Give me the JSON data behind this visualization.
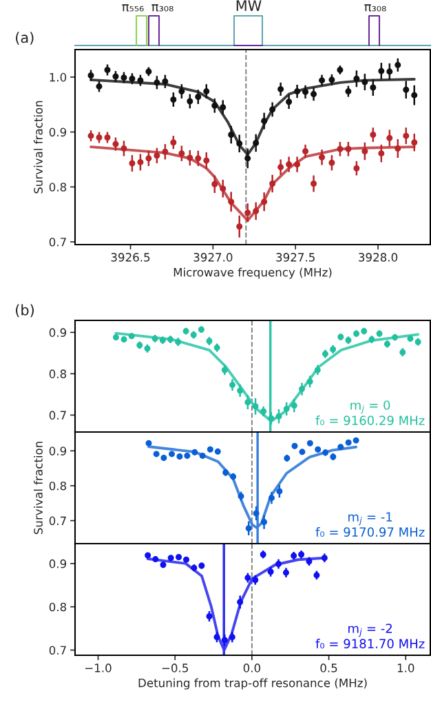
{
  "chart_data": [
    {
      "type": "other",
      "annotations": [
        "π₅₅₆",
        "π₃₀₈",
        "MW",
        "π₃₀₈"
      ]
    },
    {
      "type": "scatter",
      "xlabel": "Microwave frequency (MHz)",
      "ylabel": "Survival fraction",
      "annotations": [
        "(a)"
      ],
      "xlim": [
        3926.164,
        3928.317
      ],
      "xticks": [
        3926.5,
        {
          "value": 3927,
          "label": "3927.0"
        },
        3927.5,
        {
          "value": 3928,
          "label": "3928.0"
        }
      ],
      "ylim": [
        0.695,
        1.05
      ],
      "yticks": [
        0.7,
        0.8,
        0.9,
        {
          "value": 1,
          "label": "1.0"
        }
      ],
      "ref_lines": [
        {
          "axis": "x",
          "value": 3927.2,
          "color": "#808080",
          "line_style": "dashed"
        }
      ],
      "series": [
        {
          "type": "scatter",
          "marker": "circle",
          "color": "#111111",
          "x": [
            3926.26,
            3926.31,
            3926.36,
            3926.41,
            3926.46,
            3926.51,
            3926.56,
            3926.61,
            3926.66,
            3926.71,
            3926.76,
            3926.81,
            3926.86,
            3926.91,
            3926.96,
            3927.01,
            3927.06,
            3927.11,
            3927.16,
            3927.21,
            3927.26,
            3927.31,
            3927.36,
            3927.41,
            3927.46,
            3927.51,
            3927.56,
            3927.61,
            3927.66,
            3927.72,
            3927.77,
            3927.82,
            3927.87,
            3927.92,
            3927.97,
            3928.02,
            3928.07,
            3928.12,
            3928.17,
            3928.22
          ],
          "values": [
            1.003,
            0.983,
            1.013,
            1.001,
            0.999,
            0.997,
            0.994,
            1.01,
            0.99,
            0.992,
            0.959,
            0.974,
            0.956,
            0.964,
            0.974,
            0.948,
            0.945,
            0.895,
            0.879,
            0.852,
            0.88,
            0.92,
            0.941,
            0.978,
            0.955,
            0.974,
            0.973,
            0.969,
            0.994,
            0.995,
            1.013,
            0.974,
            0.997,
            0.991,
            0.981,
            1.011,
            1.01,
            1.022,
            0.977,
            0.967
          ],
          "errors": [
            0.01,
            0.01,
            0.01,
            0.01,
            0.01,
            0.01,
            0.01,
            0.008,
            0.012,
            0.012,
            0.013,
            0.013,
            0.013,
            0.013,
            0.013,
            0.013,
            0.013,
            0.016,
            0.016,
            0.018,
            0.016,
            0.015,
            0.013,
            0.012,
            0.013,
            0.012,
            0.012,
            0.012,
            0.01,
            0.01,
            0.008,
            0.01,
            0.015,
            0.015,
            0.015,
            0.015,
            0.015,
            0.012,
            0.016,
            0.018
          ]
        },
        {
          "type": "scatter",
          "marker": "circle",
          "color": "#b8262a",
          "x": [
            3926.26,
            3926.31,
            3926.36,
            3926.41,
            3926.46,
            3926.51,
            3926.56,
            3926.61,
            3926.66,
            3926.71,
            3926.76,
            3926.81,
            3926.86,
            3926.91,
            3926.96,
            3927.01,
            3927.06,
            3927.11,
            3927.16,
            3927.21,
            3927.26,
            3927.31,
            3927.36,
            3927.41,
            3927.46,
            3927.51,
            3927.56,
            3927.61,
            3927.66,
            3927.72,
            3927.77,
            3927.82,
            3927.87,
            3927.92,
            3927.97,
            3928.02,
            3928.07,
            3928.12,
            3928.17,
            3928.22
          ],
          "values": [
            0.893,
            0.89,
            0.89,
            0.878,
            0.87,
            0.843,
            0.845,
            0.852,
            0.857,
            0.864,
            0.881,
            0.861,
            0.853,
            0.852,
            0.848,
            0.805,
            0.797,
            0.773,
            0.728,
            0.753,
            0.756,
            0.773,
            0.806,
            0.836,
            0.841,
            0.841,
            0.865,
            0.806,
            0.854,
            0.844,
            0.869,
            0.869,
            0.834,
            0.865,
            0.895,
            0.861,
            0.889,
            0.87,
            0.893,
            0.881
          ],
          "errors": [
            0.01,
            0.01,
            0.01,
            0.012,
            0.014,
            0.015,
            0.015,
            0.014,
            0.014,
            0.014,
            0.012,
            0.014,
            0.014,
            0.014,
            0.015,
            0.016,
            0.016,
            0.018,
            0.02,
            0.017,
            0.016,
            0.017,
            0.016,
            0.014,
            0.014,
            0.014,
            0.012,
            0.015,
            0.014,
            0.014,
            0.013,
            0.013,
            0.013,
            0.016,
            0.013,
            0.016,
            0.015,
            0.017,
            0.015,
            0.016
          ]
        },
        {
          "type": "line",
          "color": "#333333",
          "x": [
            3926.26,
            3926.71,
            3926.91,
            3927.01,
            3927.09,
            3927.16,
            3927.21,
            3927.26,
            3927.31,
            3927.36,
            3927.46,
            3927.56,
            3927.77,
            3927.92,
            3928.22
          ],
          "values": [
            0.995,
            0.987,
            0.973,
            0.955,
            0.918,
            0.876,
            0.859,
            0.88,
            0.914,
            0.941,
            0.969,
            0.979,
            0.99,
            0.994,
            0.996
          ]
        },
        {
          "type": "line",
          "color": "#c44a4c",
          "x": [
            3926.26,
            3926.71,
            3926.86,
            3926.96,
            3927.01,
            3927.11,
            3927.21,
            3927.31,
            3927.36,
            3927.46,
            3927.56,
            3927.77,
            3927.92,
            3928.22
          ],
          "values": [
            0.873,
            0.862,
            0.852,
            0.834,
            0.818,
            0.771,
            0.739,
            0.775,
            0.805,
            0.834,
            0.855,
            0.869,
            0.871,
            0.873
          ]
        }
      ]
    },
    {
      "type": "scatter",
      "annotations": [
        "(b)",
        "m$_{j}$ = 0\nf₀ = 9160.29 MHz"
      ],
      "tick_labels": "y",
      "xlim": [
        -1.15,
        1.16
      ],
      "ylim": [
        0.659,
        0.929
      ],
      "yticks": [
        0.7,
        0.8,
        0.9
      ],
      "ref_lines": [
        {
          "axis": "x",
          "value": 0.0,
          "color": "#808080",
          "line_style": "dashed"
        },
        {
          "axis": "x",
          "value": 0.12,
          "color": "#2fc6a8",
          "line_style": "solid"
        }
      ],
      "series": [
        {
          "type": "scatter",
          "marker": "circle",
          "color": "#22c0a0",
          "x": [
            -0.884,
            -0.832,
            -0.782,
            -0.73,
            -0.68,
            -0.63,
            -0.58,
            -0.53,
            -0.48,
            -0.429,
            -0.379,
            -0.329,
            -0.277,
            -0.227,
            -0.177,
            -0.127,
            -0.077,
            -0.027,
            0.023,
            0.075,
            0.125,
            0.175,
            0.225,
            0.275,
            0.325,
            0.377,
            0.427,
            0.477,
            0.527,
            0.577,
            0.627,
            0.679,
            0.729,
            0.779,
            0.829,
            0.88,
            0.93,
            0.98,
            1.03,
            1.08
          ],
          "values": [
            0.888,
            0.883,
            0.891,
            0.869,
            0.861,
            0.885,
            0.881,
            0.883,
            0.877,
            0.903,
            0.894,
            0.907,
            0.879,
            0.863,
            0.809,
            0.773,
            0.759,
            0.731,
            0.721,
            0.709,
            0.692,
            0.697,
            0.715,
            0.723,
            0.763,
            0.781,
            0.809,
            0.848,
            0.859,
            0.889,
            0.881,
            0.897,
            0.903,
            0.883,
            0.897,
            0.872,
            0.888,
            0.852,
            0.885,
            0.877
          ],
          "errors": [
            0.007,
            0.007,
            0.007,
            0.009,
            0.01,
            0.009,
            0.009,
            0.009,
            0.01,
            0.008,
            0.009,
            0.008,
            0.01,
            0.01,
            0.012,
            0.014,
            0.015,
            0.017,
            0.02,
            0.012,
            0.015,
            0.017,
            0.016,
            0.016,
            0.015,
            0.014,
            0.012,
            0.01,
            0.01,
            0.008,
            0.009,
            0.008,
            0.008,
            0.009,
            0.008,
            0.009,
            0.008,
            0.01,
            0.008,
            0.009
          ]
        },
        {
          "type": "line",
          "color": "#3fcab0",
          "x": [
            -0.884,
            -0.52,
            -0.277,
            -0.17,
            -0.064,
            0.025,
            0.125,
            0.221,
            0.329,
            0.436,
            0.579,
            0.775,
            1.08
          ],
          "values": [
            0.898,
            0.883,
            0.857,
            0.817,
            0.763,
            0.717,
            0.685,
            0.71,
            0.763,
            0.817,
            0.857,
            0.88,
            0.895
          ]
        }
      ]
    },
    {
      "type": "scatter",
      "ylabel": "Survival fraction",
      "annotations": [
        "m$_{j}$ = -1\nf₀ = 9170.97 MHz"
      ],
      "tick_labels": "y",
      "xlim": [
        -1.15,
        1.16
      ],
      "ylim": [
        0.634,
        0.954
      ],
      "yticks": [
        0.7,
        0.8,
        0.9
      ],
      "ref_lines": [
        {
          "axis": "x",
          "value": 0.0,
          "color": "#808080",
          "line_style": "dashed"
        },
        {
          "axis": "x",
          "value": 0.037,
          "color": "#3a80dc",
          "line_style": "solid"
        }
      ],
      "series": [
        {
          "type": "scatter",
          "marker": "circle",
          "color": "#0a5fd6",
          "x": [
            -0.671,
            -0.621,
            -0.573,
            -0.521,
            -0.47,
            -0.421,
            -0.372,
            -0.321,
            -0.271,
            -0.222,
            -0.171,
            -0.122,
            -0.071,
            -0.021,
            0.028,
            0.079,
            0.128,
            0.179,
            0.228,
            0.278,
            0.327,
            0.378,
            0.429,
            0.478,
            0.528,
            0.577,
            0.628,
            0.677
          ],
          "values": [
            0.922,
            0.891,
            0.88,
            0.891,
            0.884,
            0.886,
            0.896,
            0.886,
            0.904,
            0.898,
            0.838,
            0.826,
            0.77,
            0.678,
            0.721,
            0.696,
            0.765,
            0.784,
            0.879,
            0.914,
            0.897,
            0.922,
            0.904,
            0.895,
            0.883,
            0.911,
            0.924,
            0.93
          ],
          "errors": [
            0.007,
            0.008,
            0.008,
            0.008,
            0.008,
            0.008,
            0.008,
            0.008,
            0.007,
            0.008,
            0.01,
            0.01,
            0.013,
            0.02,
            0.02,
            0.02,
            0.017,
            0.018,
            0.01,
            0.008,
            0.008,
            0.008,
            0.008,
            0.009,
            0.01,
            0.008,
            0.007,
            0.007
          ]
        },
        {
          "type": "line",
          "color": "#3a80dc",
          "x": [
            -0.671,
            -0.372,
            -0.22,
            -0.122,
            -0.056,
            0.003,
            0.03,
            0.062,
            0.122,
            0.226,
            0.375,
            0.524,
            0.677
          ],
          "values": [
            0.912,
            0.897,
            0.869,
            0.82,
            0.744,
            0.688,
            0.68,
            0.692,
            0.77,
            0.836,
            0.882,
            0.902,
            0.911
          ]
        }
      ]
    },
    {
      "type": "scatter",
      "xlabel": "Detuning from trap-off resonance (MHz)",
      "annotations": [
        "m$_{j}$ = -2\nf₀ = 9181.70 MHz"
      ],
      "xlim": [
        -1.15,
        1.16
      ],
      "xticks": [
        {
          "value": -1.0,
          "label": "−1.0"
        },
        {
          "value": -0.5,
          "label": "−0.5"
        },
        {
          "value": 0.0,
          "label": "0.0"
        },
        {
          "value": 0.5,
          "label": "0.5"
        },
        {
          "value": 1.0,
          "label": "1.0"
        }
      ],
      "ylim": [
        0.688,
        0.946
      ],
      "yticks": [
        0.7,
        0.8,
        0.9
      ],
      "ref_lines": [
        {
          "axis": "x",
          "value": 0.0,
          "color": "#808080",
          "line_style": "dashed"
        },
        {
          "axis": "x",
          "value": -0.182,
          "color": "#3030f0",
          "line_style": "solid"
        }
      ],
      "series": [
        {
          "type": "scatter",
          "marker": "circle",
          "color": "#1010f0",
          "x": [
            -0.677,
            -0.627,
            -0.577,
            -0.527,
            -0.476,
            -0.427,
            -0.376,
            -0.327,
            -0.277,
            -0.228,
            -0.177,
            -0.128,
            -0.077,
            -0.027,
            0.022,
            0.073,
            0.122,
            0.173,
            0.222,
            0.272,
            0.321,
            0.372,
            0.421,
            0.472
          ],
          "values": [
            0.919,
            0.91,
            0.897,
            0.913,
            0.915,
            0.909,
            0.89,
            0.895,
            0.778,
            0.73,
            0.723,
            0.73,
            0.811,
            0.867,
            0.862,
            0.921,
            0.881,
            0.899,
            0.879,
            0.918,
            0.921,
            0.905,
            0.873,
            0.913
          ],
          "errors": [
            0.006,
            0.006,
            0.007,
            0.006,
            0.006,
            0.006,
            0.008,
            0.007,
            0.012,
            0.012,
            0.013,
            0.012,
            0.015,
            0.011,
            0.011,
            0.009,
            0.011,
            0.011,
            0.011,
            0.009,
            0.009,
            0.01,
            0.01,
            0.01
          ]
        },
        {
          "type": "line",
          "color": "#3b3bf0",
          "x": [
            -0.677,
            -0.43,
            -0.326,
            -0.265,
            -0.22,
            -0.18,
            -0.132,
            -0.072,
            0.002,
            0.151,
            0.3,
            0.472
          ],
          "values": [
            0.911,
            0.9,
            0.871,
            0.801,
            0.732,
            0.7,
            0.737,
            0.812,
            0.865,
            0.897,
            0.909,
            0.913
          ]
        }
      ]
    }
  ]
}
